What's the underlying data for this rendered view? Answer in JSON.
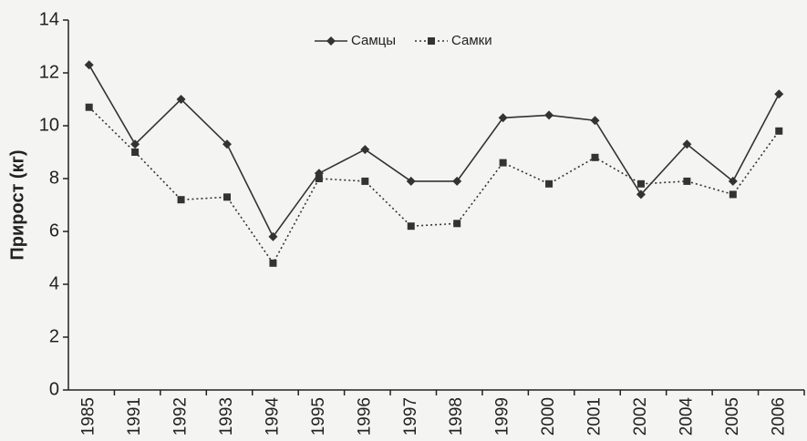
{
  "chart_data": {
    "type": "line",
    "y_label": "Прирост (кг)",
    "categories": [
      "1985",
      "1991",
      "1992",
      "1993",
      "1994",
      "1995",
      "1996",
      "1997",
      "1998",
      "1999",
      "2000",
      "2001",
      "2002",
      "2004",
      "2005",
      "2006"
    ],
    "series": [
      {
        "name": "Самцы",
        "color": "#333333",
        "values": [
          12.3,
          9.3,
          11.0,
          9.3,
          5.8,
          8.2,
          9.1,
          7.9,
          7.9,
          10.3,
          10.4,
          10.2,
          7.4,
          9.3,
          7.9,
          11.2
        ]
      },
      {
        "name": "Самки",
        "color": "#333333",
        "values": [
          10.7,
          9.0,
          7.2,
          7.3,
          4.8,
          8.0,
          7.9,
          6.2,
          6.3,
          8.6,
          7.8,
          8.8,
          7.8,
          7.9,
          7.4,
          9.8
        ]
      }
    ],
    "ylim": [
      0,
      14
    ],
    "yticks": [
      0,
      2,
      4,
      6,
      8,
      10,
      12,
      14
    ],
    "legend": "top"
  }
}
